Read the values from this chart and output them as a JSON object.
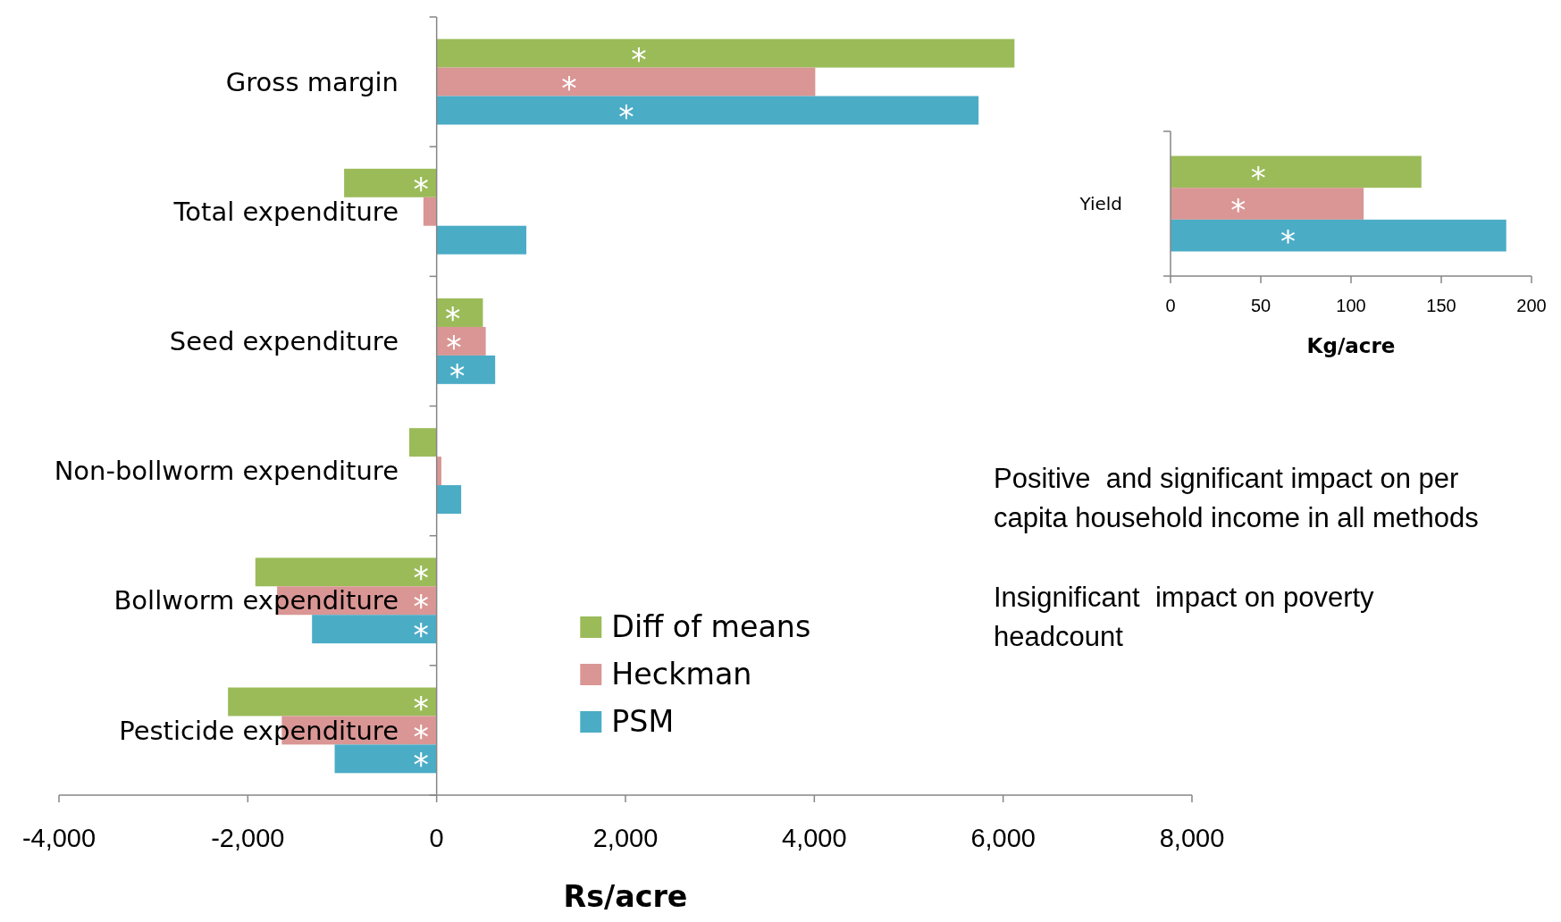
{
  "chart_data": [
    {
      "type": "bar",
      "orientation": "horizontal",
      "xlabel": "Rs/acre",
      "categories": [
        "Gross margin",
        "Total expenditure",
        "Seed expenditure",
        "Non-bollworm expenditure",
        "Bollworm expenditure",
        "Pesticide expenditure"
      ],
      "series": [
        {
          "name": "Diff of means",
          "color": "#9bbb59",
          "values": [
            6120,
            -980,
            490,
            -290,
            -1920,
            -2210
          ],
          "value_labels": [
            "*",
            "*",
            "*",
            null,
            "*",
            "*"
          ]
        },
        {
          "name": "Heckman",
          "color": "#d99694",
          "values": [
            4010,
            -140,
            520,
            50,
            -1690,
            -1640
          ],
          "value_labels": [
            "*",
            null,
            "*",
            null,
            "*",
            "*"
          ]
        },
        {
          "name": "PSM",
          "color": "#4bacc6",
          "values": [
            5740,
            950,
            620,
            260,
            -1320,
            -1080
          ],
          "value_labels": [
            "*",
            null,
            "*",
            null,
            "*",
            "*"
          ]
        }
      ],
      "xlim": [
        -4000,
        8000
      ],
      "xticks": [
        {
          "value": -4000,
          "label": "-4,000"
        },
        {
          "value": -2000,
          "label": "-2,000"
        },
        0,
        {
          "value": 2000,
          "label": "2,000"
        },
        {
          "value": 4000,
          "label": "4,000"
        },
        {
          "value": 6000,
          "label": "6,000"
        },
        {
          "value": 8000,
          "label": "8,000"
        }
      ],
      "legend": "bottom",
      "grid": false,
      "annotations": [
        "Positive  and significant impact on per capita household income in all methods",
        "Insignificant  impact on poverty headcount"
      ]
    },
    {
      "type": "bar",
      "orientation": "horizontal",
      "xlabel": "Kg/acre",
      "categories": [
        "Yield"
      ],
      "series": [
        {
          "color": "#9bbb59",
          "values": [
            139
          ],
          "value_labels": [
            "*"
          ]
        },
        {
          "color": "#d99694",
          "values": [
            107
          ],
          "value_labels": [
            "*"
          ]
        },
        {
          "color": "#4bacc6",
          "values": [
            186
          ],
          "value_labels": [
            "*"
          ]
        }
      ],
      "xlim": [
        0,
        200
      ],
      "xticks": [
        0,
        50,
        100,
        150,
        200
      ],
      "legend": false,
      "grid": false
    }
  ]
}
